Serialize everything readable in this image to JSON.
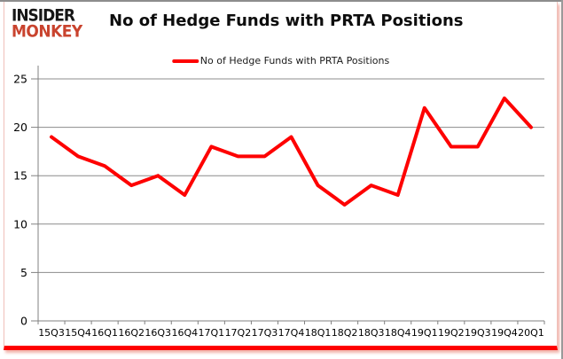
{
  "header": {
    "logo": {
      "line1": "INSIDER",
      "line2": "MONKEY"
    },
    "title": "No of Hedge Funds with PRTA Positions"
  },
  "legend": {
    "label": "No of Hedge Funds with PRTA Positions",
    "color": "#fe0000"
  },
  "chart_data": {
    "type": "line",
    "title": "No of Hedge Funds with PRTA Positions",
    "categories": [
      "15Q3",
      "15Q4",
      "16Q1",
      "16Q2",
      "16Q3",
      "16Q4",
      "17Q1",
      "17Q2",
      "17Q3",
      "17Q4",
      "18Q1",
      "18Q2",
      "18Q3",
      "18Q4",
      "19Q1",
      "19Q2",
      "19Q3",
      "19Q4",
      "20Q1"
    ],
    "series": [
      {
        "name": "No of Hedge Funds with PRTA Positions",
        "color": "#fe0000",
        "values": [
          19,
          17,
          16,
          14,
          15,
          13,
          18,
          17,
          17,
          19,
          14,
          12,
          14,
          13,
          22,
          18,
          18,
          23,
          20
        ]
      }
    ],
    "xlabel": "",
    "ylabel": "",
    "ylim": [
      0,
      25
    ],
    "yticks": [
      0,
      5,
      10,
      15,
      20,
      25
    ],
    "grid": true,
    "legend_position": "top-center",
    "gridline_color": "#8c8c8c",
    "axis_color": "#808080",
    "tick_label_color": "#000000",
    "line_width": 4
  },
  "frame": {
    "border_side_color": "#f0c2bc",
    "border_bottom_color": "#fe0000",
    "outer_frame_color": "#8d8d8d",
    "logo_red": "#c9432e"
  }
}
